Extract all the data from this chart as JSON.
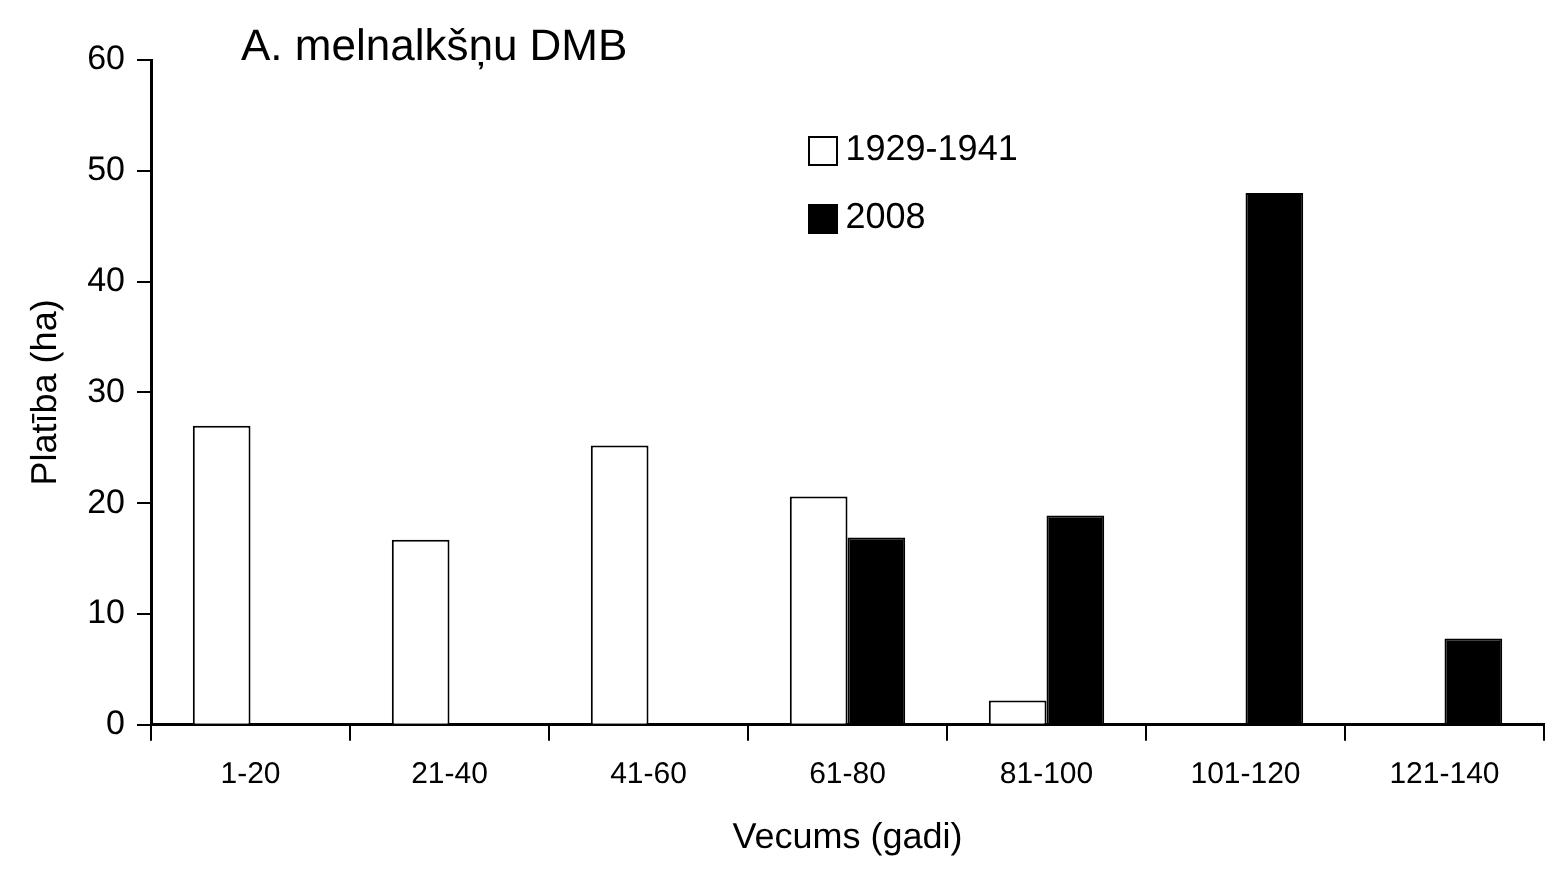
{
  "chart_data": {
    "type": "bar",
    "title": "A. melnalkšņu DMB",
    "xlabel": "Vecums (gadi)",
    "ylabel": "Platība (ha)",
    "categories": [
      "1-20",
      "21-40",
      "41-60",
      "61-80",
      "81-100",
      "101-120",
      "121-140"
    ],
    "series": [
      {
        "name": "1929-1941",
        "color": "#ffffff",
        "values": [
          27,
          16.7,
          25.2,
          20.6,
          2.2,
          null,
          null
        ]
      },
      {
        "name": "2008",
        "color": "#000000",
        "values": [
          null,
          null,
          null,
          16.9,
          18.9,
          48,
          7.8
        ]
      }
    ],
    "ylim": [
      0,
      60
    ],
    "yticks": [
      0,
      10,
      20,
      30,
      40,
      50,
      60
    ],
    "grid": false,
    "legend": "top"
  }
}
